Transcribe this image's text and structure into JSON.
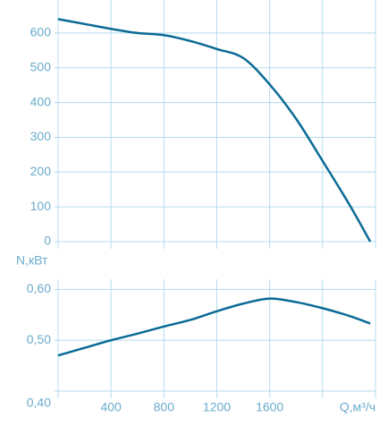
{
  "chart_data": [
    {
      "type": "line",
      "x": [
        0,
        200,
        400,
        600,
        800,
        1000,
        1200,
        1400,
        1600,
        1800,
        2000,
        2200,
        2360
      ],
      "values": [
        640,
        626,
        612,
        600,
        594,
        577,
        554,
        528,
        452,
        353,
        232,
        108,
        0
      ],
      "color": "#0a6a96",
      "xlim": [
        0,
        2400
      ],
      "ylim": [
        0,
        695
      ],
      "yticks": [
        0,
        100,
        200,
        300,
        400,
        500,
        600
      ],
      "xgrid": [
        0,
        400,
        800,
        1200,
        1600,
        2000,
        2400
      ],
      "grid": true
    },
    {
      "type": "line",
      "x": [
        0,
        200,
        400,
        600,
        800,
        1000,
        1200,
        1400,
        1600,
        1800,
        2000,
        2200,
        2360
      ],
      "values": [
        0.47,
        0.485,
        0.5,
        0.513,
        0.527,
        0.54,
        0.557,
        0.572,
        0.582,
        0.575,
        0.563,
        0.548,
        0.533
      ],
      "color": "#0a6a96",
      "ylabel": "N,кВт",
      "xlabel": "Q,м³/ч",
      "xlim": [
        0,
        2400
      ],
      "ylim": [
        0.4,
        0.62
      ],
      "yticks": [
        {
          "value": 0.4,
          "label": "0,40"
        },
        {
          "value": 0.5,
          "label": "0,50"
        },
        {
          "value": 0.6,
          "label": "0,60"
        }
      ],
      "xticks": [
        400,
        800,
        1200,
        1600
      ],
      "xgrid": [
        0,
        400,
        800,
        1200,
        1600,
        2000,
        2400
      ],
      "grid": true
    }
  ]
}
